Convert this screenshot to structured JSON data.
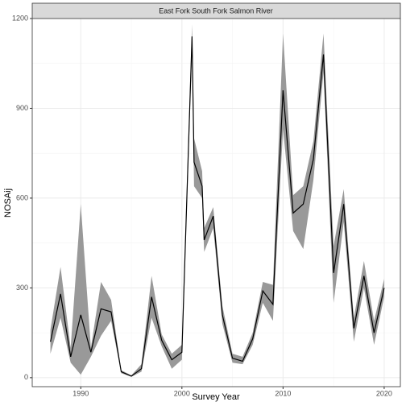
{
  "chart_data": {
    "type": "line",
    "title": "East Fork South Fork Salmon River",
    "xlabel": "Survey Year",
    "ylabel": "NOSAij",
    "x": [
      1987,
      1988,
      1989,
      1990,
      1991,
      1992,
      1993,
      1994,
      1995,
      1996,
      1997,
      1998,
      1999,
      2000,
      2001,
      2001.2,
      2002,
      2002.2,
      2003.1,
      2004,
      2005,
      2006,
      2007,
      2008,
      2009,
      2010,
      2011,
      2012,
      2013,
      2014,
      2015,
      2016,
      2017,
      2018,
      2019,
      2020
    ],
    "values": [
      120,
      280,
      70,
      210,
      85,
      230,
      220,
      20,
      5,
      30,
      270,
      125,
      60,
      85,
      1140,
      720,
      640,
      460,
      540,
      210,
      65,
      55,
      130,
      290,
      245,
      960,
      550,
      580,
      730,
      1080,
      350,
      580,
      165,
      340,
      150,
      300
    ],
    "lower": [
      80,
      200,
      50,
      10,
      70,
      140,
      190,
      15,
      3,
      20,
      200,
      105,
      30,
      60,
      1100,
      640,
      600,
      420,
      500,
      180,
      50,
      45,
      110,
      250,
      190,
      830,
      490,
      430,
      660,
      1020,
      250,
      520,
      120,
      300,
      110,
      270
    ],
    "upper": [
      160,
      370,
      100,
      580,
      100,
      320,
      260,
      25,
      8,
      45,
      340,
      145,
      80,
      110,
      1180,
      800,
      690,
      500,
      570,
      240,
      80,
      70,
      150,
      320,
      310,
      1150,
      610,
      640,
      790,
      1150,
      440,
      630,
      200,
      390,
      190,
      330
    ],
    "color": "#000000",
    "band_color": "#999999",
    "xlim": [
      1985.2,
      2021.6
    ],
    "xticks": [
      1990,
      2000,
      2010,
      2020
    ],
    "ylim": [
      -30,
      1200
    ],
    "yticks": [
      0,
      300,
      600,
      900,
      1200
    ],
    "grid": true
  }
}
